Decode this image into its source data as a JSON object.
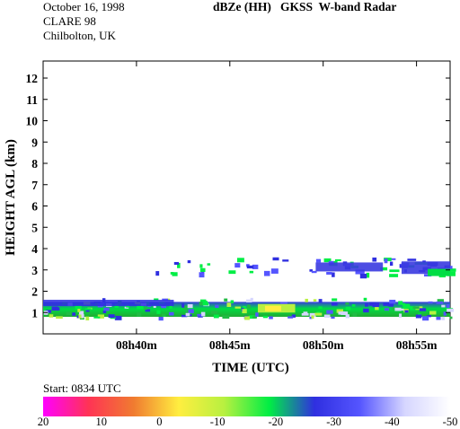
{
  "header": {
    "date": "October 16, 1998",
    "campaign": "CLARE 98",
    "site": "Chilbolton, UK",
    "title": "dBZe (HH)   GKSS  W-band Radar"
  },
  "start_label": "Start: 0834 UTC",
  "chart_data": {
    "type": "heatmap",
    "title": "dBZe (HH)   GKSS  W-band Radar",
    "xlabel": "TIME (UTC)",
    "ylabel": "HEIGHT AGL (km)",
    "xlim_minutes_after_0800": [
      35,
      56.8
    ],
    "xticks": [
      {
        "value": 40,
        "label": "08h40m"
      },
      {
        "value": 45,
        "label": "08h45m"
      },
      {
        "value": 50,
        "label": "08h50m"
      },
      {
        "value": 55,
        "label": "08h55m"
      }
    ],
    "ylim": [
      0,
      12.8
    ],
    "yticks": [
      1,
      2,
      3,
      4,
      5,
      6,
      7,
      8,
      9,
      10,
      11,
      12
    ],
    "features": [
      {
        "name": "boundary layer echo",
        "x_start": 35,
        "x_end": 56.8,
        "height_km": [
          0.8,
          1.5
        ],
        "dbze": -25
      },
      {
        "name": "cloud base echo",
        "x_start": 35,
        "x_end": 42,
        "height_km": [
          1.0,
          1.6
        ],
        "dbze": -30
      },
      {
        "name": "strong echo core",
        "x_start": 46.5,
        "x_end": 48.5,
        "height_km": [
          1.0,
          1.4
        ],
        "dbze": -12
      },
      {
        "name": "mid-level cloud layer",
        "x_start": 41,
        "x_end": 56.8,
        "height_km": [
          2.8,
          3.6
        ],
        "dbze": -38
      }
    ],
    "colorbar": {
      "label_values": [
        20,
        10,
        0,
        -10,
        -20,
        -30,
        -40,
        -50
      ],
      "colors": [
        "#ff00ff",
        "#ff3355",
        "#f07b30",
        "#ffee40",
        "#b8f040",
        "#00ee44",
        "#2f2fe0",
        "#5555ff",
        "#d6d6ff",
        "#ffffff"
      ]
    }
  }
}
